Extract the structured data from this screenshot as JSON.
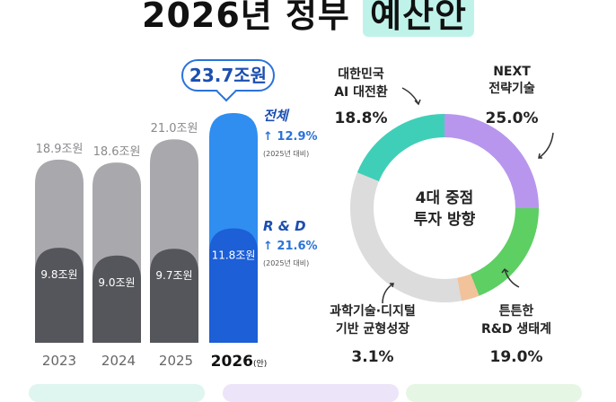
{
  "header": {
    "title_main": "2026년 정부",
    "title_highlight": "예산안"
  },
  "chart_data": [
    {
      "type": "bar",
      "categories": [
        "2023",
        "2024",
        "2025",
        "2026"
      ],
      "category_suffix_current": "(안)",
      "series": [
        {
          "name": "전체",
          "values": [
            18.9,
            18.6,
            21.0,
            23.7
          ],
          "labels": [
            "18.9조원",
            "18.6조원",
            "21.0조원",
            "23.7조원"
          ]
        },
        {
          "name": "R&D",
          "values": [
            9.8,
            9.0,
            9.7,
            11.8
          ],
          "labels": [
            "9.8조원",
            "9.0조원",
            "9.7조원",
            "11.8조원"
          ]
        }
      ],
      "annotations": [
        {
          "label": "전체",
          "change": "↑ 12.9%",
          "note": "(2025년 대비)"
        },
        {
          "label": "R & D",
          "change": "↑ 21.6%",
          "note": "(2025년 대비)"
        }
      ],
      "colors": {
        "total_past": "#a9a9ad",
        "rnd_past": "#55565b",
        "total_current": "#2f8ef0",
        "rnd_current": "#1c5fd6"
      }
    },
    {
      "type": "pie",
      "center_text": [
        "4대 중점",
        "투자 방향"
      ],
      "slices": [
        {
          "label": [
            "NEXT",
            "전략기술"
          ],
          "value": 25.0,
          "display": "25.0%",
          "color": "#b896ee"
        },
        {
          "label": [
            "튼튼한",
            "R&D 생태계"
          ],
          "value": 19.0,
          "display": "19.0%",
          "color": "#5ecf63"
        },
        {
          "label": [
            "과학기술·디지털",
            "기반 균형성장"
          ],
          "value": 3.1,
          "display": "3.1%",
          "color": "#f2c29a"
        },
        {
          "label": [
            "대한민국",
            "AI 대전환"
          ],
          "value": 18.8,
          "display": "18.8%",
          "color": "#3fcfb8"
        }
      ],
      "remainder_color": "#dcdcdc"
    }
  ]
}
